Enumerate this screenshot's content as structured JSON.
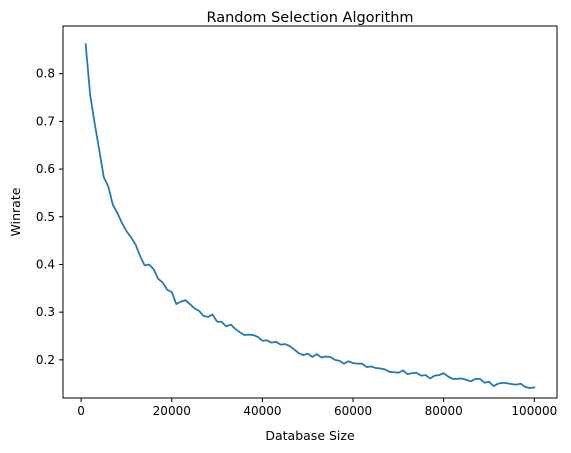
{
  "chart_data": {
    "type": "line",
    "title": "Random Selection Algorithm",
    "xlabel": "Database Size",
    "ylabel": "Winrate",
    "xlim": [
      -4000,
      105000
    ],
    "ylim": [
      0.12,
      0.9
    ],
    "xticks": [
      0,
      20000,
      40000,
      60000,
      80000,
      100000
    ],
    "xtick_labels": [
      "0",
      "20000",
      "40000",
      "60000",
      "80000",
      "100000"
    ],
    "yticks": [
      0.2,
      0.3,
      0.4,
      0.5,
      0.6,
      0.7,
      0.8
    ],
    "ytick_labels": [
      "0.2",
      "0.3",
      "0.4",
      "0.5",
      "0.6",
      "0.7",
      "0.8"
    ],
    "grid": false,
    "legend": "none",
    "series": [
      {
        "name": "Random Selection",
        "color": "#1f77b4",
        "x": [
          1000,
          2000,
          3000,
          4000,
          5000,
          6000,
          7000,
          8000,
          9000,
          10000,
          11000,
          12000,
          13000,
          14000,
          15000,
          16000,
          17000,
          18000,
          19000,
          20000,
          21000,
          22000,
          23000,
          24000,
          25000,
          26000,
          27000,
          28000,
          29000,
          30000,
          31000,
          32000,
          33000,
          34000,
          35000,
          36000,
          37000,
          38000,
          39000,
          40000,
          41000,
          42000,
          43000,
          44000,
          45000,
          46000,
          47000,
          48000,
          49000,
          50000,
          51000,
          52000,
          53000,
          54000,
          55000,
          56000,
          57000,
          58000,
          59000,
          60000,
          61000,
          62000,
          63000,
          64000,
          65000,
          66000,
          67000,
          68000,
          69000,
          70000,
          71000,
          72000,
          73000,
          74000,
          75000,
          76000,
          77000,
          78000,
          79000,
          80000,
          81000,
          82000,
          83000,
          84000,
          85000,
          86000,
          87000,
          88000,
          89000,
          90000,
          91000,
          92000,
          93000,
          94000,
          95000,
          96000,
          97000,
          98000,
          99000,
          100000
        ],
        "values": [
          0.862,
          0.755,
          0.695,
          0.64,
          0.583,
          0.563,
          0.525,
          0.508,
          0.487,
          0.47,
          0.457,
          0.442,
          0.418,
          0.398,
          0.4,
          0.39,
          0.37,
          0.362,
          0.347,
          0.342,
          0.317,
          0.322,
          0.325,
          0.317,
          0.308,
          0.303,
          0.292,
          0.29,
          0.295,
          0.28,
          0.28,
          0.27,
          0.274,
          0.265,
          0.258,
          0.252,
          0.253,
          0.252,
          0.248,
          0.24,
          0.241,
          0.236,
          0.238,
          0.232,
          0.233,
          0.229,
          0.222,
          0.214,
          0.21,
          0.213,
          0.206,
          0.212,
          0.205,
          0.207,
          0.206,
          0.2,
          0.198,
          0.192,
          0.197,
          0.193,
          0.192,
          0.192,
          0.185,
          0.186,
          0.183,
          0.182,
          0.18,
          0.175,
          0.174,
          0.173,
          0.178,
          0.17,
          0.172,
          0.173,
          0.167,
          0.168,
          0.161,
          0.167,
          0.168,
          0.172,
          0.165,
          0.16,
          0.16,
          0.161,
          0.158,
          0.155,
          0.16,
          0.16,
          0.152,
          0.154,
          0.145,
          0.15,
          0.152,
          0.151,
          0.149,
          0.148,
          0.15,
          0.143,
          0.141,
          0.142
        ]
      }
    ]
  }
}
